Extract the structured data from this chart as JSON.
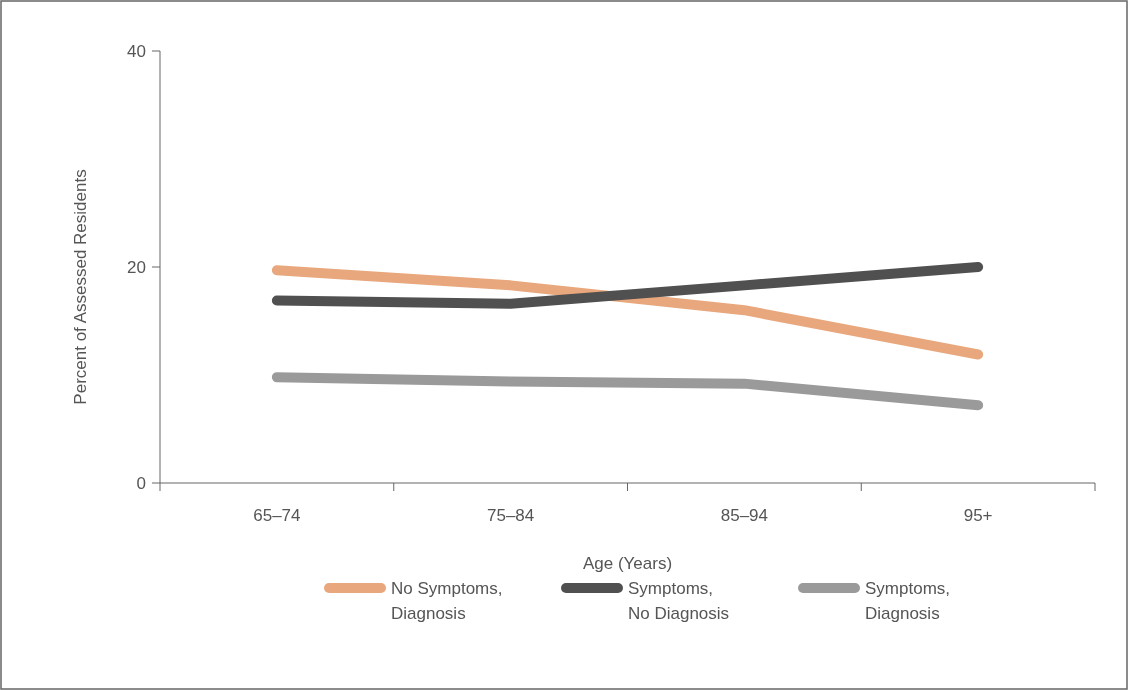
{
  "chart_data": {
    "type": "line",
    "xlabel": "Age (Years)",
    "ylabel": "Percent of Assessed Residents",
    "categories": [
      "65–74",
      "75–84",
      "85–94",
      "95+"
    ],
    "ylim": [
      0,
      40
    ],
    "yticks": [
      0,
      20,
      40
    ],
    "grid": false,
    "legend": "bottom",
    "series": [
      {
        "name": "No Symptoms,\nDiagnosis",
        "color": "#e8a77c",
        "values": [
          19.7,
          18.3,
          16,
          11.9
        ]
      },
      {
        "name": "Symptoms,\nNo Diagnosis",
        "color": "#505050",
        "values": [
          16.9,
          16.6,
          18.3,
          20
        ]
      },
      {
        "name": "Symptoms,\nDiagnosis",
        "color": "#9a9a9a",
        "values": [
          9.8,
          9.4,
          9.2,
          7.2
        ]
      }
    ]
  }
}
